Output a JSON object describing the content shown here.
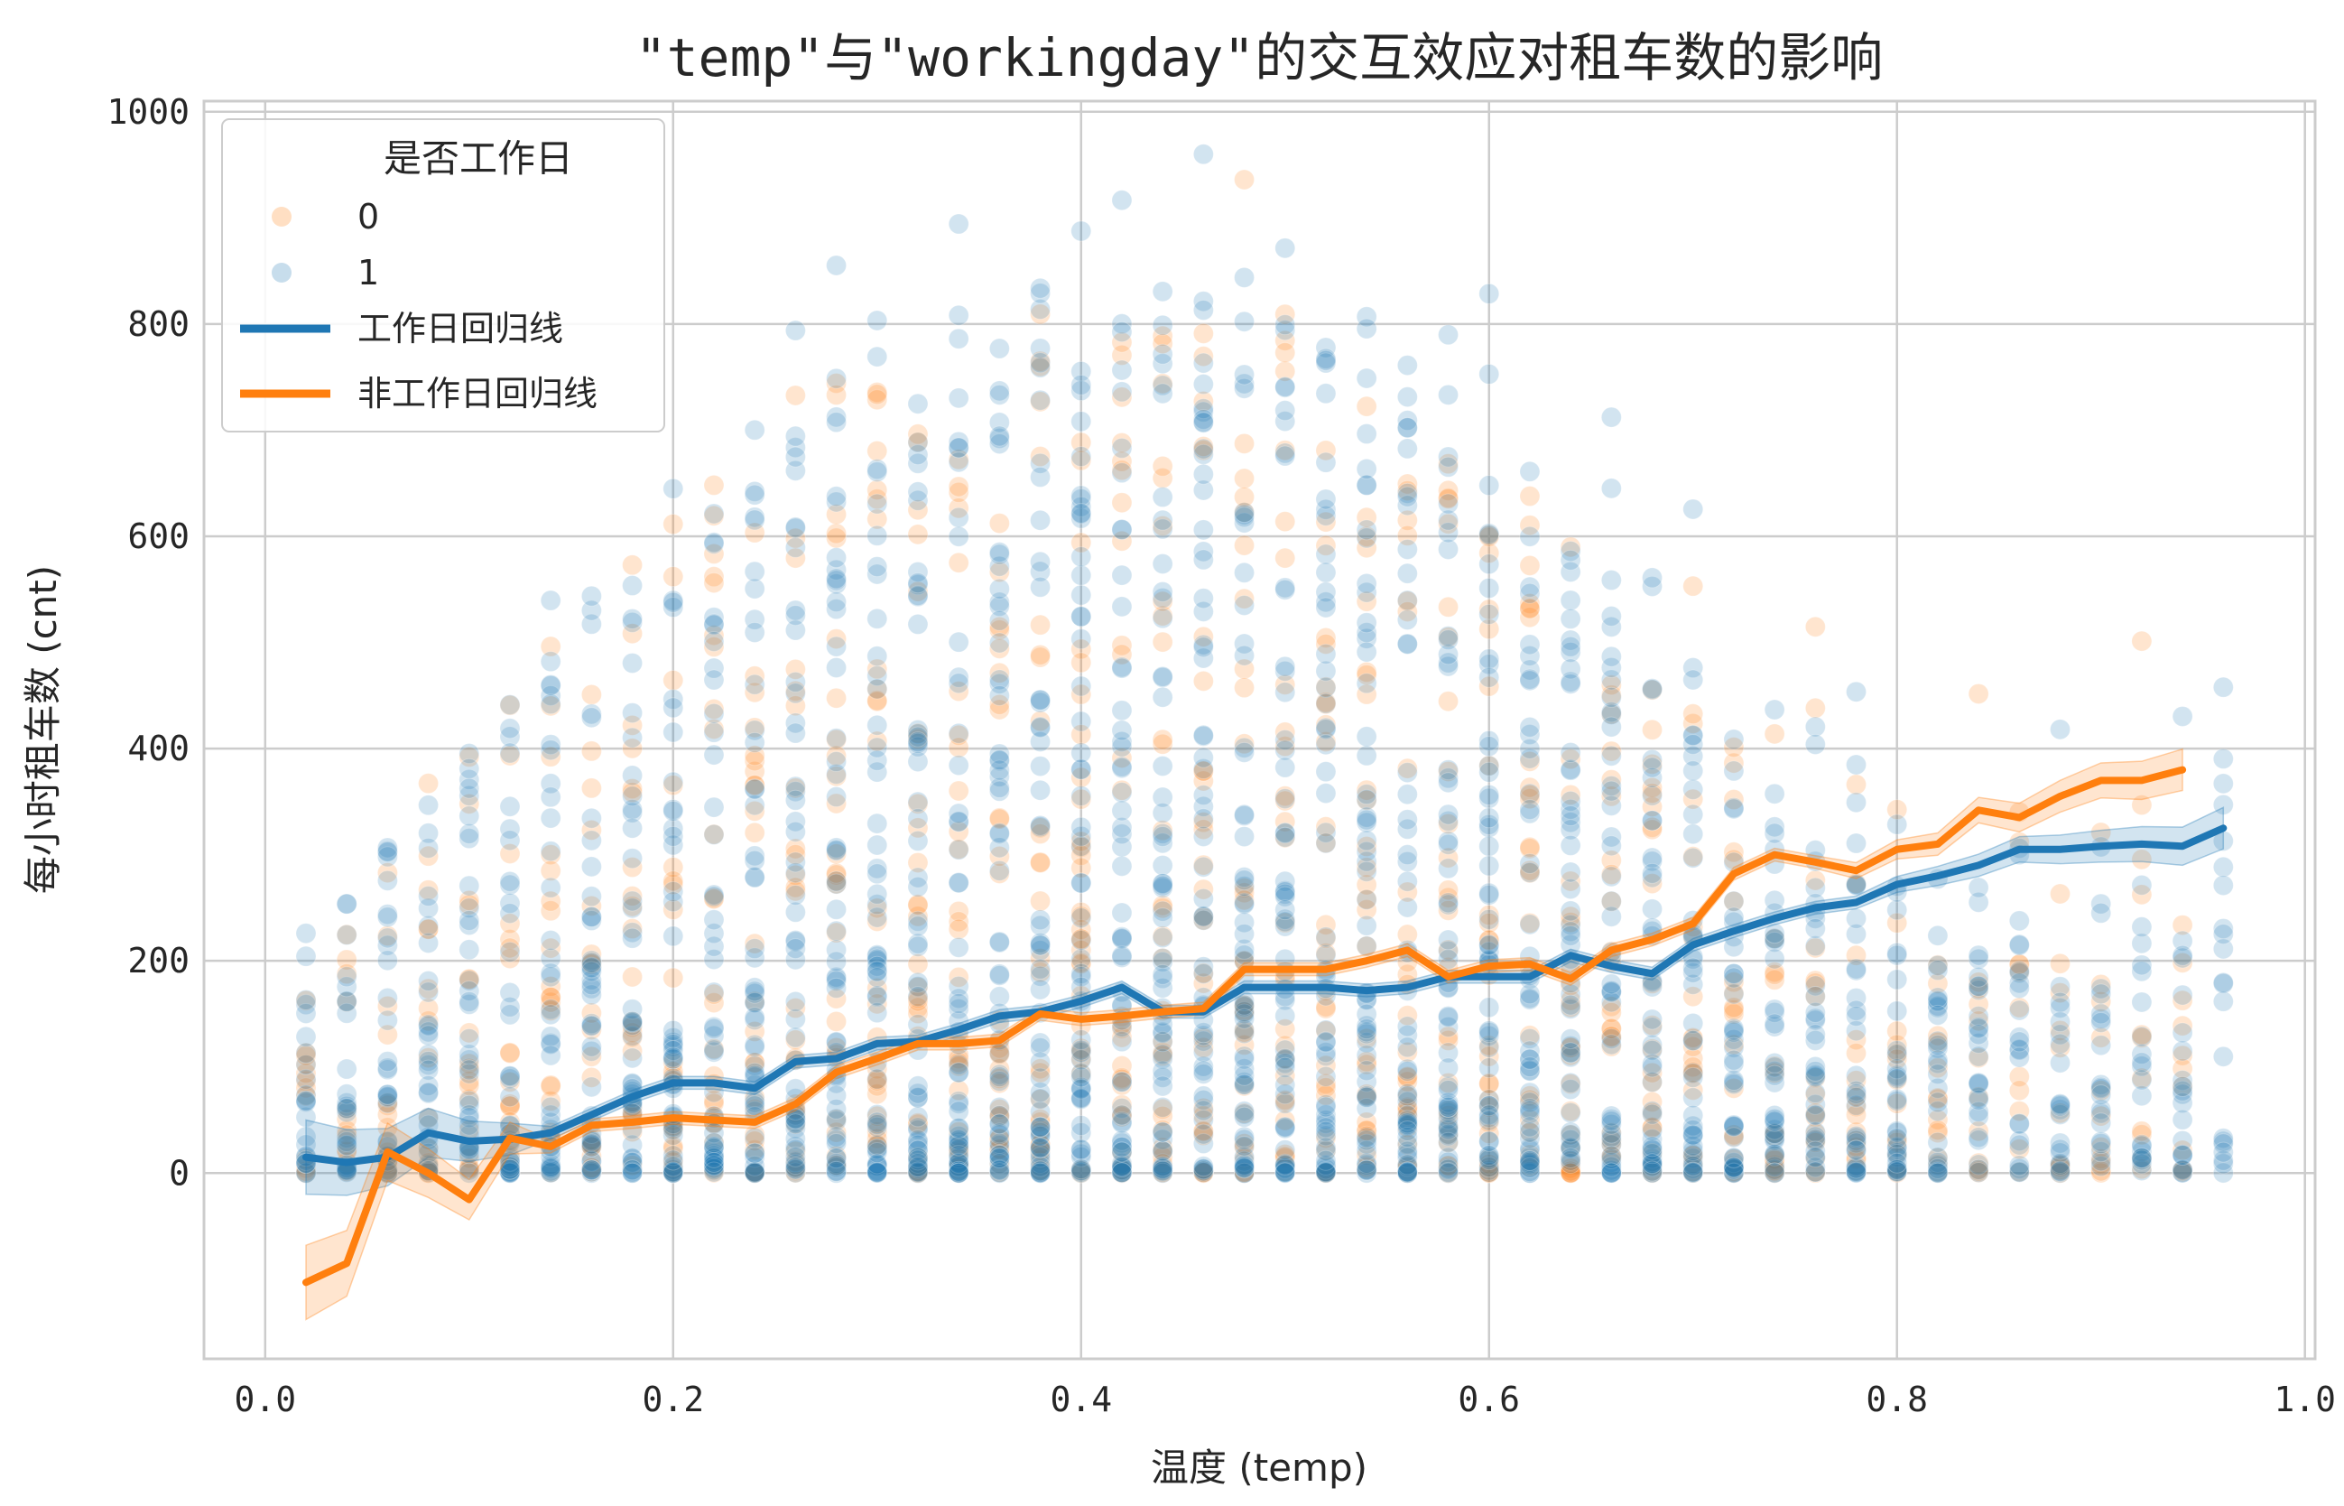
{
  "chart_data": {
    "type": "scatter",
    "title": "\"temp\"与\"workingday\"的交互效应对租车数的影响",
    "xlabel": "温度 (temp)",
    "ylabel": "每小时租车数 (cnt)",
    "xlim": [
      -0.03,
      1.005
    ],
    "ylim": [
      -175,
      1010
    ],
    "xticks": [
      "0.0",
      "0.2",
      "0.4",
      "0.6",
      "0.8",
      "1.0"
    ],
    "yticks": [
      "0",
      "200",
      "400",
      "600",
      "800",
      "1000"
    ],
    "grid": true,
    "legend": {
      "placement": "top-left",
      "title": "是否工作日",
      "entries": [
        "0",
        "1",
        "工作日回归线",
        "非工作日回归线"
      ]
    },
    "colors": {
      "workingday_0": "#ff7f0e",
      "workingday_1": "#1f77b4",
      "grid": "#cccccc"
    },
    "series": [
      {
        "name": "工作日回归线",
        "color": "#1f77b4",
        "x": [
          0.02,
          0.04,
          0.06,
          0.08,
          0.1,
          0.12,
          0.14,
          0.16,
          0.18,
          0.2,
          0.22,
          0.24,
          0.26,
          0.28,
          0.3,
          0.32,
          0.34,
          0.36,
          0.38,
          0.4,
          0.42,
          0.44,
          0.46,
          0.48,
          0.5,
          0.52,
          0.54,
          0.56,
          0.58,
          0.6,
          0.62,
          0.64,
          0.66,
          0.68,
          0.7,
          0.72,
          0.74,
          0.76,
          0.78,
          0.8,
          0.82,
          0.84,
          0.86,
          0.88,
          0.9,
          0.92,
          0.94,
          0.96
        ],
        "y": [
          15,
          10,
          15,
          38,
          30,
          32,
          38,
          55,
          72,
          85,
          85,
          80,
          105,
          108,
          122,
          124,
          135,
          148,
          152,
          162,
          175,
          152,
          152,
          175,
          175,
          175,
          172,
          175,
          185,
          185,
          185,
          205,
          195,
          188,
          215,
          228,
          240,
          250,
          255,
          272,
          280,
          290,
          305,
          305,
          308,
          310,
          308,
          325
        ]
      },
      {
        "name": "非工作日回归线",
        "color": "#ff7f0e",
        "x": [
          0.02,
          0.04,
          0.06,
          0.08,
          0.1,
          0.12,
          0.14,
          0.16,
          0.18,
          0.2,
          0.22,
          0.24,
          0.26,
          0.28,
          0.3,
          0.32,
          0.34,
          0.36,
          0.38,
          0.4,
          0.42,
          0.44,
          0.46,
          0.48,
          0.5,
          0.52,
          0.54,
          0.56,
          0.58,
          0.6,
          0.62,
          0.64,
          0.66,
          0.68,
          0.7,
          0.72,
          0.74,
          0.76,
          0.78,
          0.8,
          0.82,
          0.84,
          0.86,
          0.88,
          0.9,
          0.92,
          0.94
        ],
        "y": [
          -103,
          -85,
          20,
          0,
          -25,
          33,
          25,
          45,
          48,
          52,
          50,
          48,
          65,
          95,
          108,
          122,
          122,
          125,
          150,
          145,
          148,
          152,
          155,
          192,
          192,
          192,
          200,
          210,
          185,
          195,
          197,
          183,
          210,
          220,
          235,
          282,
          300,
          293,
          285,
          305,
          310,
          342,
          335,
          355,
          370,
          370,
          380
        ]
      }
    ]
  }
}
